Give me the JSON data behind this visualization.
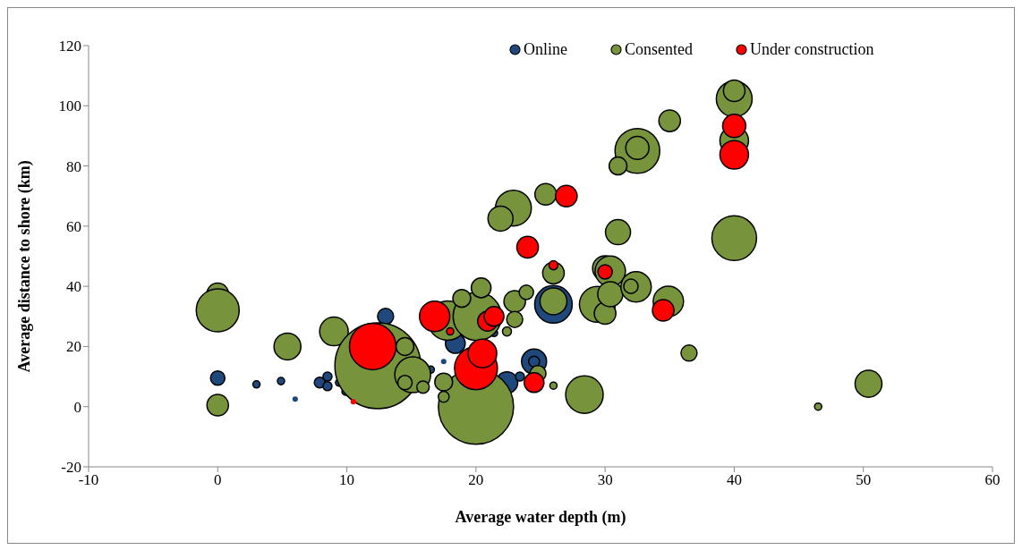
{
  "chart_data": {
    "type": "bubble",
    "xlabel": "Average water depth (m)",
    "ylabel": "Average distance to shore (km)",
    "xlim": [
      -10,
      60
    ],
    "xticks": [
      -10,
      0,
      10,
      20,
      30,
      40,
      50,
      60
    ],
    "ylim": [
      -20,
      120
    ],
    "yticks": [
      -20,
      0,
      20,
      40,
      60,
      80,
      100,
      120
    ],
    "legend": "top right",
    "marker": "circle",
    "series": [
      {
        "name": "Online",
        "color": "#1f497d",
        "x": [
          0,
          3,
          4.9,
          7.9,
          8.5,
          8.5,
          9.4,
          9.9,
          6,
          13,
          16.5,
          18.4,
          17.5,
          21.4,
          22.4,
          23.4,
          24.5,
          24.5,
          26
        ],
        "values": [
          9.5,
          7.4,
          8.5,
          8,
          10,
          6.8,
          8,
          5,
          2.5,
          30,
          12.3,
          21,
          15,
          24.5,
          8,
          10,
          15,
          15,
          34
        ],
        "sizes": [
          0.028,
          0.007,
          0.007,
          0.016,
          0.011,
          0.011,
          0.007,
          0.007,
          0.004,
          0.035,
          0.007,
          0.053,
          0.004,
          0.007,
          0.063,
          0.011,
          0.085,
          0.016,
          0.191
        ]
      },
      {
        "name": "Consented",
        "color": "#77933c",
        "x": [
          0,
          0,
          0,
          5.4,
          9,
          12.4,
          20,
          17.8,
          20.1,
          18.9,
          20.4,
          23,
          23.9,
          23,
          22.4,
          14.5,
          15.1,
          14.5,
          15.9,
          17.5,
          17.5,
          24.8,
          26,
          40,
          40,
          40,
          40,
          35,
          32.5,
          32.5,
          31,
          31,
          22.9,
          21.9,
          25.4,
          26,
          26,
          30,
          30.4,
          29.4,
          30,
          30.4,
          32.4,
          32,
          34.9,
          36.5,
          28.4,
          50.4,
          46.5
        ],
        "values": [
          37.5,
          32,
          0.5,
          20,
          25,
          13.6,
          0,
          28.6,
          30,
          36,
          39.5,
          35,
          38,
          29,
          25,
          20,
          10.6,
          8,
          6.5,
          8.2,
          3.3,
          11,
          7,
          102.3,
          105,
          88.4,
          56,
          95,
          85,
          86,
          80,
          58,
          66,
          62.5,
          70.6,
          44.4,
          35,
          46,
          45,
          34,
          31,
          37.4,
          39.8,
          40,
          35,
          17.8,
          4,
          7.6,
          0
        ],
        "sizes": [
          0.063,
          0.25,
          0.063,
          0.098,
          0.111,
          1,
          0.766,
          0.21,
          0.316,
          0.043,
          0.053,
          0.063,
          0.028,
          0.035,
          0.011,
          0.043,
          0.174,
          0.028,
          0.021,
          0.043,
          0.016,
          0.035,
          0.007,
          0.174,
          0.063,
          0.111,
          0.271,
          0.063,
          0.271,
          0.073,
          0.043,
          0.085,
          0.174,
          0.085,
          0.063,
          0.063,
          0.098,
          0.085,
          0.125,
          0.174,
          0.063,
          0.085,
          0.125,
          0.028,
          0.125,
          0.035,
          0.191,
          0.098,
          0.007
        ]
      },
      {
        "name": "Under construction",
        "color": "#ff0000",
        "x": [
          40,
          40,
          27,
          24,
          26,
          30,
          34.5,
          24.5,
          12,
          16.8,
          18,
          20,
          20.5,
          20.9,
          21.4,
          10.5
        ],
        "values": [
          93.3,
          83.7,
          70,
          53,
          47,
          44.8,
          32,
          8,
          20,
          30,
          25,
          12.8,
          17.7,
          28.4,
          30,
          1.6
        ],
        "sizes": [
          0.073,
          0.111,
          0.063,
          0.063,
          0.011,
          0.028,
          0.063,
          0.053,
          0.293,
          0.125,
          0.007,
          0.25,
          0.111,
          0.053,
          0.053,
          0.004
        ]
      }
    ]
  }
}
